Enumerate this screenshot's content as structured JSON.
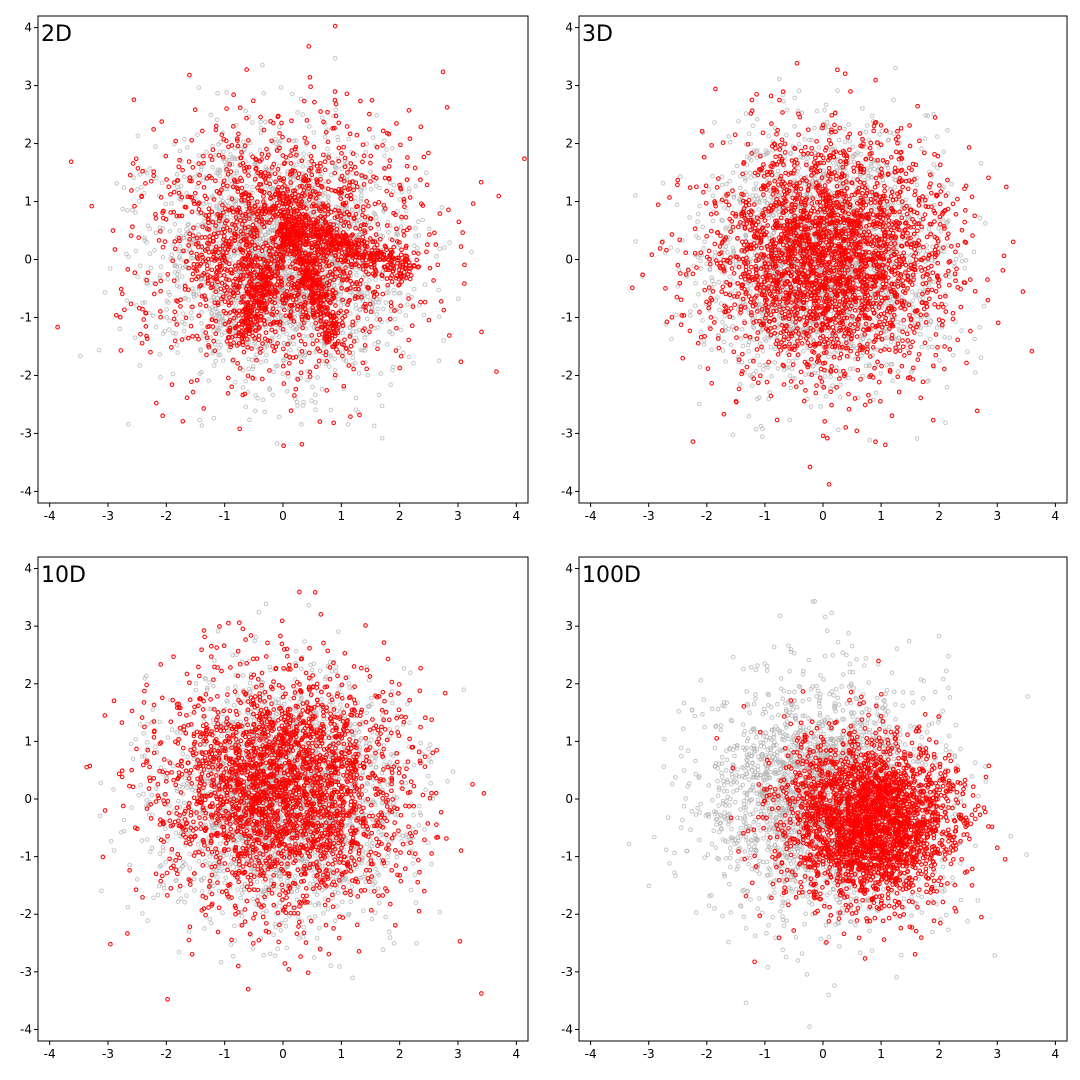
{
  "chart_data": [
    {
      "type": "scatter",
      "title": "2D",
      "xlim": [
        -4.2,
        4.2
      ],
      "ylim": [
        -4.2,
        4.2
      ],
      "xticks": [
        "-4",
        "-3",
        "-2",
        "-1",
        "0",
        "1",
        "2",
        "3",
        "4"
      ],
      "yticks": [
        "4",
        "3",
        "2",
        "1",
        "0",
        "-1",
        "-2",
        "-3",
        "-4"
      ],
      "grid": false,
      "series": [
        {
          "color": "#b3b3b3",
          "marker": "open-circle",
          "distribution": "approx. standard normal cloud, ~2500 pts",
          "center": [
            0.0,
            0.0
          ],
          "spread": [
            1.0,
            1.0
          ]
        },
        {
          "color": "#ff0000",
          "marker": "open-circle",
          "distribution": "swirled / banana-shaped arms, radius ~0.5-2.8, concentrated toward upper-left and right",
          "center": [
            0.0,
            0.2
          ],
          "spread": [
            1.1,
            1.1
          ]
        }
      ]
    },
    {
      "type": "scatter",
      "title": "3D",
      "xlim": [
        -4.2,
        4.2
      ],
      "ylim": [
        -4.2,
        4.2
      ],
      "xticks": [
        "-4",
        "-3",
        "-2",
        "-1",
        "0",
        "1",
        "2",
        "3",
        "4"
      ],
      "yticks": [
        "4",
        "3",
        "2",
        "1",
        "0",
        "-1",
        "-2",
        "-3",
        "-4"
      ],
      "grid": false,
      "series": [
        {
          "color": "#b3b3b3",
          "marker": "open-circle",
          "center": [
            0.0,
            0.0
          ],
          "spread": [
            1.0,
            1.0
          ]
        },
        {
          "color": "#ff0000",
          "marker": "open-circle",
          "center": [
            0.1,
            0.0
          ],
          "spread": [
            1.0,
            1.0
          ]
        }
      ]
    },
    {
      "type": "scatter",
      "title": "10D",
      "xlim": [
        -4.2,
        4.2
      ],
      "ylim": [
        -4.2,
        4.2
      ],
      "xticks": [
        "-4",
        "-3",
        "-2",
        "-1",
        "0",
        "1",
        "2",
        "3",
        "4"
      ],
      "yticks": [
        "4",
        "3",
        "2",
        "1",
        "0",
        "-1",
        "-2",
        "-3",
        "-4"
      ],
      "grid": false,
      "series": [
        {
          "color": "#b3b3b3",
          "marker": "open-circle",
          "center": [
            0.0,
            0.0
          ],
          "spread": [
            1.0,
            1.0
          ]
        },
        {
          "color": "#ff0000",
          "marker": "open-circle",
          "center": [
            0.0,
            0.2
          ],
          "spread": [
            1.05,
            1.05
          ]
        }
      ]
    },
    {
      "type": "scatter",
      "title": "100D",
      "xlim": [
        -4.2,
        4.2
      ],
      "ylim": [
        -4.2,
        4.2
      ],
      "xticks": [
        "-4",
        "-3",
        "-2",
        "-1",
        "0",
        "1",
        "2",
        "3",
        "4"
      ],
      "yticks": [
        "4",
        "3",
        "2",
        "1",
        "0",
        "-1",
        "-2",
        "-3",
        "-4"
      ],
      "grid": false,
      "series": [
        {
          "color": "#b3b3b3",
          "marker": "open-circle",
          "center": [
            0.0,
            0.0
          ],
          "spread": [
            1.0,
            1.0
          ]
        },
        {
          "color": "#ff0000",
          "marker": "open-circle",
          "center": [
            0.8,
            -0.4
          ],
          "spread": [
            0.75,
            0.7
          ]
        }
      ]
    }
  ]
}
